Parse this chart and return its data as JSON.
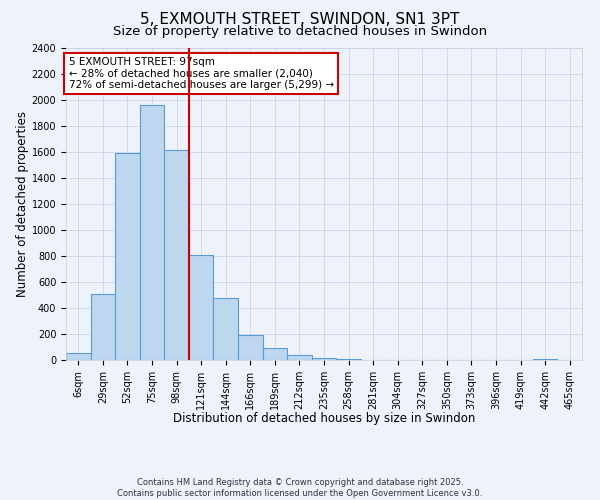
{
  "title": "5, EXMOUTH STREET, SWINDON, SN1 3PT",
  "subtitle": "Size of property relative to detached houses in Swindon",
  "xlabel": "Distribution of detached houses by size in Swindon",
  "ylabel": "Number of detached properties",
  "bar_labels": [
    "6sqm",
    "29sqm",
    "52sqm",
    "75sqm",
    "98sqm",
    "121sqm",
    "144sqm",
    "166sqm",
    "189sqm",
    "212sqm",
    "235sqm",
    "258sqm",
    "281sqm",
    "304sqm",
    "327sqm",
    "350sqm",
    "373sqm",
    "396sqm",
    "419sqm",
    "442sqm",
    "465sqm"
  ],
  "bar_values": [
    50,
    510,
    1590,
    1960,
    1610,
    810,
    480,
    190,
    90,
    35,
    15,
    5,
    2,
    0,
    0,
    0,
    0,
    0,
    0,
    10,
    0
  ],
  "bar_color": "#bdd7ee",
  "bar_edge_color": "#5b9bd5",
  "background_color": "#eef2fb",
  "grid_color": "#c8d0e8",
  "vline_x": 4.5,
  "vline_color": "#cc0000",
  "ylim": [
    0,
    2400
  ],
  "yticks": [
    0,
    200,
    400,
    600,
    800,
    1000,
    1200,
    1400,
    1600,
    1800,
    2000,
    2200,
    2400
  ],
  "annotation_title": "5 EXMOUTH STREET: 97sqm",
  "annotation_line1": "← 28% of detached houses are smaller (2,040)",
  "annotation_line2": "72% of semi-detached houses are larger (5,299) →",
  "footer_line1": "Contains HM Land Registry data © Crown copyright and database right 2025.",
  "footer_line2": "Contains public sector information licensed under the Open Government Licence v3.0.",
  "title_fontsize": 11,
  "subtitle_fontsize": 9.5,
  "axis_label_fontsize": 8.5,
  "tick_fontsize": 7,
  "annotation_fontsize": 7.5,
  "footer_fontsize": 6
}
